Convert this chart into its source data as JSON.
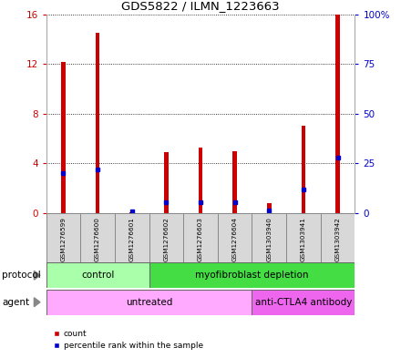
{
  "title": "GDS5822 / ILMN_1223663",
  "samples": [
    "GSM1276599",
    "GSM1276600",
    "GSM1276601",
    "GSM1276602",
    "GSM1276603",
    "GSM1276604",
    "GSM1303940",
    "GSM1303941",
    "GSM1303942"
  ],
  "counts": [
    12.2,
    14.5,
    0.05,
    4.9,
    5.3,
    5.0,
    0.8,
    7.0,
    16.0
  ],
  "percentiles": [
    20.0,
    22.0,
    1.0,
    5.5,
    5.5,
    5.5,
    1.5,
    12.0,
    28.0
  ],
  "ylim_left": [
    0,
    16
  ],
  "ylim_right": [
    0,
    100
  ],
  "yticks_left": [
    0,
    4,
    8,
    12,
    16
  ],
  "yticks_right": [
    0,
    25,
    50,
    75,
    100
  ],
  "ytick_labels_right": [
    "0",
    "25",
    "50",
    "75",
    "100%"
  ],
  "bar_color": "#cc0000",
  "dot_color": "#0000cc",
  "grid_color": "#000000",
  "protocol_labels": [
    {
      "text": "control",
      "start": 0,
      "end": 3,
      "color": "#aaffaa"
    },
    {
      "text": "myofibroblast depletion",
      "start": 3,
      "end": 9,
      "color": "#44dd44"
    }
  ],
  "agent_labels": [
    {
      "text": "untreated",
      "start": 0,
      "end": 6,
      "color": "#ffaaff"
    },
    {
      "text": "anti-CTLA4 antibody",
      "start": 6,
      "end": 9,
      "color": "#ee66ee"
    }
  ],
  "bg_color": "#d8d8d8",
  "legend_count_color": "#cc0000",
  "legend_dot_color": "#0000cc",
  "bar_width": 0.12
}
